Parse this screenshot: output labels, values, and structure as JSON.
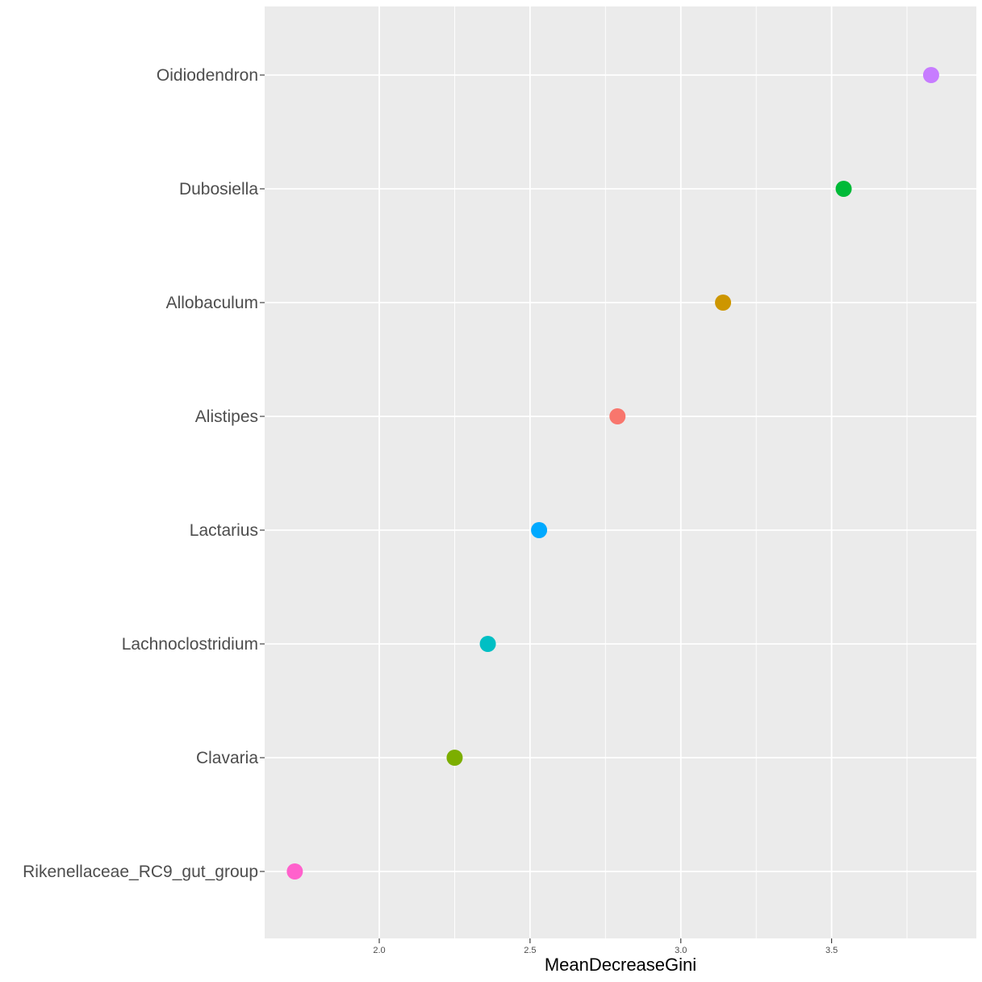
{
  "chart_data": {
    "type": "scatter",
    "title": "",
    "xlabel": "MeanDecreaseGini",
    "ylabel": "",
    "xlim": [
      1.62,
      3.98
    ],
    "x_ticks": [
      2.0,
      2.5,
      3.0,
      3.5
    ],
    "x_tick_labels": [
      "2.0",
      "2.5",
      "3.0",
      "3.5"
    ],
    "grid": true,
    "legend": "none",
    "categories": [
      "Oidiodendron",
      "Dubosiella",
      "Allobaculum",
      "Alistipes",
      "Lactarius",
      "Lachnoclostridium",
      "Clavaria",
      "Rikenellaceae_RC9_gut_group"
    ],
    "values": [
      3.83,
      3.54,
      3.14,
      2.79,
      2.53,
      2.36,
      2.25,
      1.72
    ],
    "colors": [
      "#C77CFF",
      "#00BA38",
      "#CD9600",
      "#F8766D",
      "#00A9FF",
      "#00BFC4",
      "#7CAE00",
      "#FF61CC"
    ]
  }
}
